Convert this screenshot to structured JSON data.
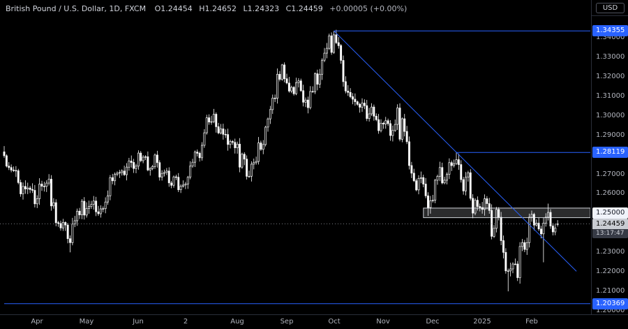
{
  "legend": {
    "title": "British Pound / U.S. Dollar, 1D, FXCM",
    "ohlc": {
      "o": "O1.24454",
      "h": "H1.24652",
      "l": "L1.24323",
      "c": "C1.24459",
      "change": "+0.00005 (+0.00%)"
    }
  },
  "price_scale": {
    "currency": "USD",
    "labels": [
      "1.34000",
      "1.33000",
      "1.32000",
      "1.31000",
      "1.30000",
      "1.29000",
      "1.28000",
      "1.27000",
      "1.26000",
      "1.25000",
      "1.24000",
      "1.23000",
      "1.22000",
      "1.21000",
      "1.20000"
    ],
    "badges": [
      {
        "text": "1.34355",
        "price": 1.34355,
        "bg": "#2962ff",
        "fg": "#ffffff"
      },
      {
        "text": "1.28119",
        "price": 1.28119,
        "bg": "#2962ff",
        "fg": "#ffffff"
      },
      {
        "text": "1.25000",
        "price": 1.25,
        "bg": "#f0f3fa",
        "fg": "#131722"
      },
      {
        "text": "1.20369",
        "price": 1.20369,
        "bg": "#2962ff",
        "fg": "#ffffff"
      },
      {
        "text": "1.24459",
        "price": 1.24459,
        "bg": "#c9ccd3",
        "fg": "#000000",
        "countdown": "13:17:47"
      }
    ]
  },
  "time_scale": {
    "ticks": [
      {
        "index": 14,
        "label": "Apr"
      },
      {
        "index": 35,
        "label": "May"
      },
      {
        "index": 57,
        "label": "Jun"
      },
      {
        "index": 77,
        "label": "2"
      },
      {
        "index": 99,
        "label": "Aug"
      },
      {
        "index": 120,
        "label": "Sep"
      },
      {
        "index": 140,
        "label": "Oct"
      },
      {
        "index": 161,
        "label": "Nov"
      },
      {
        "index": 182,
        "label": "Dec"
      },
      {
        "index": 203,
        "label": "2025"
      },
      {
        "index": 224,
        "label": "Feb"
      }
    ]
  },
  "colors": {
    "background": "#000000",
    "axis_text": "#b2b5be",
    "separator": "#2a2e39",
    "wick": "#ffffff",
    "candle_border": "#ffffff",
    "candle_up_fill": "#000000",
    "candle_down_fill": "#ffffff",
    "drawing_blue": "#2962ff",
    "badge_blue": "#2962ff"
  },
  "chart_data": {
    "type": "candlestick",
    "title": "British Pound / U.S. Dollar",
    "timeframe": "1D",
    "exchange": "FXCM",
    "countdown": "13:17:47",
    "last": {
      "open": 1.24454,
      "high": 1.24652,
      "low": 1.24323,
      "close": 1.24459,
      "change": "+0.00005",
      "change_pct": "+0.00%"
    },
    "price_range_visible": [
      1.19823,
      1.35936
    ],
    "first_open": 1.2815,
    "closes": [
      1.2795,
      1.2742,
      1.2735,
      1.2722,
      1.272,
      1.2718,
      1.2658,
      1.26,
      1.2638,
      1.2625,
      1.263,
      1.2622,
      1.2618,
      1.2549,
      1.2575,
      1.265,
      1.2639,
      1.2638,
      1.2655,
      1.2675,
      1.2538,
      1.2555,
      1.2452,
      1.2448,
      1.2425,
      1.2453,
      1.244,
      1.237,
      1.235,
      1.2445,
      1.2462,
      1.2511,
      1.2492,
      1.2562,
      1.2491,
      1.2525,
      1.2535,
      1.2546,
      1.2563,
      1.2508,
      1.2498,
      1.2523,
      1.2524,
      1.2558,
      1.259,
      1.2683,
      1.2667,
      1.27,
      1.2706,
      1.2709,
      1.2717,
      1.2698,
      1.2737,
      1.2768,
      1.2761,
      1.273,
      1.2742,
      1.2809,
      1.277,
      1.2788,
      1.279,
      1.2722,
      1.273,
      1.274,
      1.2799,
      1.276,
      1.2686,
      1.2705,
      1.271,
      1.2717,
      1.2656,
      1.2644,
      1.2687,
      1.2685,
      1.2621,
      1.2639,
      1.2645,
      1.265,
      1.2685,
      1.2742,
      1.2762,
      1.2814,
      1.2808,
      1.2785,
      1.2849,
      1.2913,
      1.299,
      1.2968,
      1.297,
      1.3008,
      1.2944,
      1.2912,
      1.2933,
      1.2905,
      1.2904,
      1.2853,
      1.2868,
      1.2864,
      1.2836,
      1.2855,
      1.2737,
      1.2803,
      1.2778,
      1.269,
      1.269,
      1.2752,
      1.276,
      1.2766,
      1.2861,
      1.2828,
      1.2853,
      1.2942,
      1.2984,
      1.3032,
      1.3091,
      1.309,
      1.3213,
      1.3187,
      1.3261,
      1.319,
      1.3168,
      1.3127,
      1.3146,
      1.3113,
      1.317,
      1.3179,
      1.3129,
      1.307,
      1.3081,
      1.3042,
      1.3125,
      1.3124,
      1.3216,
      1.3162,
      1.3213,
      1.3285,
      1.3321,
      1.3346,
      1.341,
      1.3325,
      1.3415,
      1.3375,
      1.336,
      1.3284,
      1.3175,
      1.3127,
      1.312,
      1.3098,
      1.3085,
      1.3072,
      1.3059,
      1.3044,
      1.3065,
      1.3052,
      1.2986,
      1.301,
      1.3045,
      1.2998,
      1.298,
      1.2924,
      1.2962,
      1.2958,
      1.2975,
      1.296,
      1.2899,
      1.2925,
      1.2956,
      1.304,
      1.288,
      1.2985,
      1.292,
      1.2867,
      1.2745,
      1.2706,
      1.2667,
      1.262,
      1.2679,
      1.2683,
      1.265,
      1.259,
      1.253,
      1.2565,
      1.2567,
      1.267,
      1.269,
      1.2735,
      1.2656,
      1.267,
      1.27,
      1.276,
      1.2745,
      1.2755,
      1.2775,
      1.275,
      1.2673,
      1.2615,
      1.2685,
      1.2708,
      1.2577,
      1.2501,
      1.2567,
      1.2535,
      1.253,
      1.252,
      1.2575,
      1.255,
      1.2515,
      1.2382,
      1.2423,
      1.252,
      1.248,
      1.236,
      1.23,
      1.2205,
      1.2205,
      1.2215,
      1.224,
      1.224,
      1.217,
      1.233,
      1.235,
      1.2315,
      1.235,
      1.248,
      1.2495,
      1.244,
      1.245,
      1.242,
      1.2395,
      1.245,
      1.248,
      1.2505,
      1.2435,
      1.2405,
      1.2425,
      1.24459
    ],
    "wick_overrides": {
      "28": {
        "l": 1.23
      },
      "118": {
        "h": 1.3266
      },
      "140": {
        "h": 1.34355
      },
      "159": {
        "l": 1.2908
      },
      "180": {
        "l": 1.2487
      },
      "192": {
        "h": 1.28119
      },
      "199": {
        "l": 1.2475
      },
      "214": {
        "l": 1.21
      },
      "229": {
        "l": 1.2249
      },
      "231": {
        "h": 1.255
      },
      "235": {
        "o": 1.24454,
        "h": 1.24652,
        "l": 1.24323,
        "c": 1.24459
      }
    },
    "drawings": [
      {
        "type": "rect",
        "from_index": 178,
        "to_index": "right",
        "top_price": 1.2527,
        "bottom_price": 1.2478,
        "stroke": "rgba(240,243,250,0.85)",
        "fill": "rgba(240,243,250,0.18)"
      },
      {
        "type": "hline",
        "price": 1.34355,
        "from_index": 140,
        "color": "#2962ff"
      },
      {
        "type": "hline",
        "price": 1.28119,
        "from_index": 192,
        "color": "#2962ff"
      },
      {
        "type": "hline",
        "price": 1.20369,
        "from_index": 0,
        "color": "#2962ff"
      },
      {
        "type": "trendline",
        "from_index": 140,
        "from_price": 1.34355,
        "to_index": 243,
        "to_price": 1.2203,
        "color": "#2962ff"
      },
      {
        "type": "price_line",
        "price": 1.24459,
        "color": "#9598a1"
      }
    ]
  }
}
